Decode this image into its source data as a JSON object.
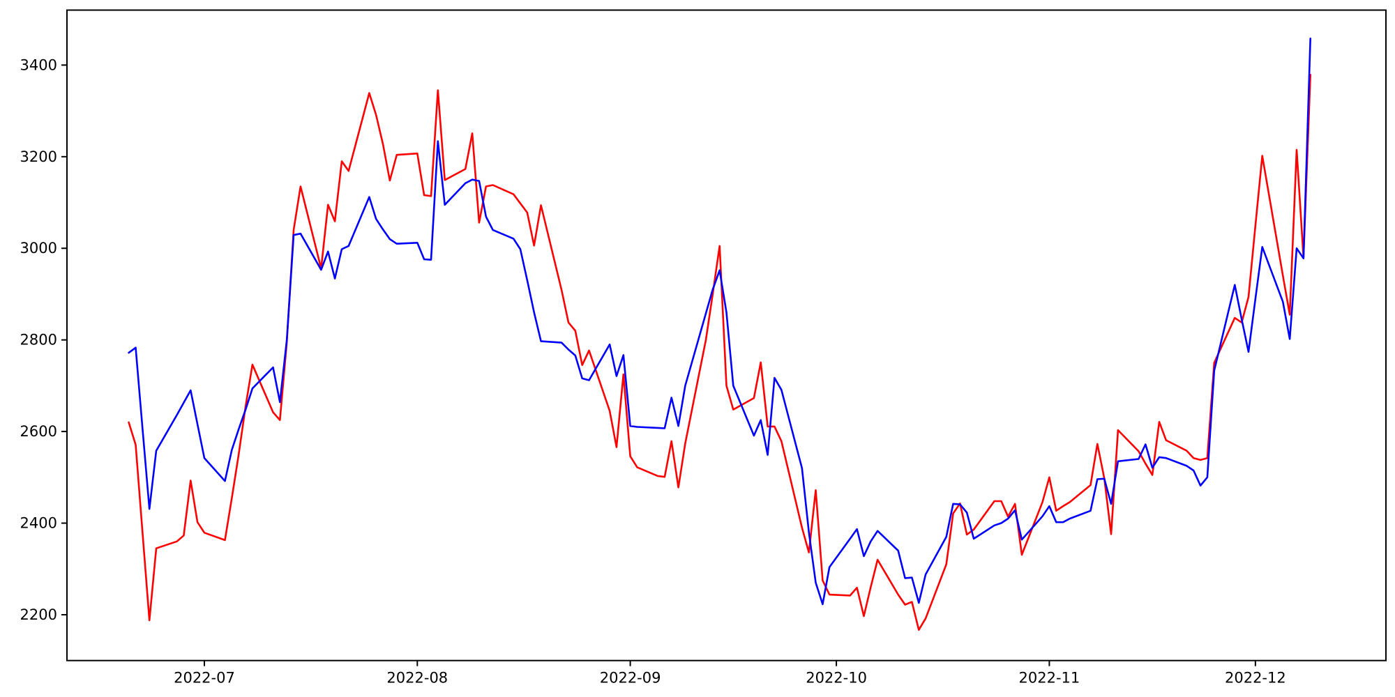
{
  "chart_data": {
    "type": "line",
    "title": "",
    "xlabel": "",
    "ylabel": "",
    "grid": false,
    "legend": null,
    "background_color": "#ffffff",
    "spine_color": "#000000",
    "xlim_dates": [
      "2022-06-11",
      "2022-12-20"
    ],
    "ylim": [
      2100,
      3520
    ],
    "yticks": [
      2200,
      2400,
      2600,
      2800,
      3000,
      3200,
      3400
    ],
    "xticks": [
      {
        "date": "2022-07-01",
        "label": "2022-07"
      },
      {
        "date": "2022-08-01",
        "label": "2022-08"
      },
      {
        "date": "2022-09-01",
        "label": "2022-09"
      },
      {
        "date": "2022-10-01",
        "label": "2022-10"
      },
      {
        "date": "2022-11-01",
        "label": "2022-11"
      },
      {
        "date": "2022-12-01",
        "label": "2022-12"
      }
    ],
    "x_dates": [
      "2022-06-20",
      "2022-06-21",
      "2022-06-22",
      "2022-06-23",
      "2022-06-24",
      "2022-06-27",
      "2022-06-28",
      "2022-06-29",
      "2022-06-30",
      "2022-07-01",
      "2022-07-04",
      "2022-07-05",
      "2022-07-06",
      "2022-07-07",
      "2022-07-08",
      "2022-07-11",
      "2022-07-12",
      "2022-07-13",
      "2022-07-14",
      "2022-07-15",
      "2022-07-18",
      "2022-07-19",
      "2022-07-20",
      "2022-07-21",
      "2022-07-22",
      "2022-07-25",
      "2022-07-26",
      "2022-07-27",
      "2022-07-28",
      "2022-07-29",
      "2022-08-01",
      "2022-08-02",
      "2022-08-03",
      "2022-08-04",
      "2022-08-05",
      "2022-08-08",
      "2022-08-09",
      "2022-08-10",
      "2022-08-11",
      "2022-08-12",
      "2022-08-15",
      "2022-08-16",
      "2022-08-17",
      "2022-08-18",
      "2022-08-19",
      "2022-08-22",
      "2022-08-23",
      "2022-08-24",
      "2022-08-25",
      "2022-08-26",
      "2022-08-29",
      "2022-08-30",
      "2022-08-31",
      "2022-09-01",
      "2022-09-02",
      "2022-09-05",
      "2022-09-06",
      "2022-09-07",
      "2022-09-08",
      "2022-09-09",
      "2022-09-12",
      "2022-09-13",
      "2022-09-14",
      "2022-09-15",
      "2022-09-16",
      "2022-09-19",
      "2022-09-20",
      "2022-09-21",
      "2022-09-22",
      "2022-09-23",
      "2022-09-26",
      "2022-09-27",
      "2022-09-28",
      "2022-09-29",
      "2022-09-30",
      "2022-10-03",
      "2022-10-04",
      "2022-10-05",
      "2022-10-06",
      "2022-10-07",
      "2022-10-10",
      "2022-10-11",
      "2022-10-12",
      "2022-10-13",
      "2022-10-14",
      "2022-10-17",
      "2022-10-18",
      "2022-10-19",
      "2022-10-20",
      "2022-10-21",
      "2022-10-24",
      "2022-10-25",
      "2022-10-26",
      "2022-10-27",
      "2022-10-28",
      "2022-10-31",
      "2022-11-01",
      "2022-11-02",
      "2022-11-03",
      "2022-11-04",
      "2022-11-07",
      "2022-11-08",
      "2022-11-09",
      "2022-11-10",
      "2022-11-11",
      "2022-11-14",
      "2022-11-15",
      "2022-11-16",
      "2022-11-17",
      "2022-11-18",
      "2022-11-21",
      "2022-11-22",
      "2022-11-23",
      "2022-11-24",
      "2022-11-25",
      "2022-11-28",
      "2022-11-29",
      "2022-11-30",
      "2022-12-01",
      "2022-12-02",
      "2022-12-05",
      "2022-12-06",
      "2022-12-07",
      "2022-12-08",
      "2022-12-09"
    ],
    "series": [
      {
        "name": "red-series",
        "color": "#ff0000",
        "values": [
          2620,
          2571,
          2380,
          2188,
          2345,
          2360,
          2373,
          2493,
          2402,
          2379,
          2363,
          2455,
          2550,
          2655,
          2746,
          2642,
          2625,
          2795,
          3040,
          3135,
          2956,
          3095,
          3059,
          3190,
          3169,
          3339,
          3291,
          3227,
          3148,
          3204,
          3207,
          3116,
          3114,
          3345,
          3149,
          3173,
          3251,
          3056,
          3135,
          3138,
          3118,
          3098,
          3078,
          3006,
          3094,
          2909,
          2838,
          2820,
          2745,
          2777,
          2645,
          2566,
          2725,
          2546,
          2522,
          2503,
          2501,
          2579,
          2478,
          2574,
          2800,
          2900,
          3005,
          2700,
          2648,
          2673,
          2751,
          2611,
          2611,
          2579,
          2390,
          2336,
          2472,
          2275,
          2244,
          2242,
          2259,
          2197,
          2260,
          2320,
          2244,
          2222,
          2228,
          2167,
          2192,
          2310,
          2421,
          2443,
          2375,
          2386,
          2448,
          2448,
          2414,
          2442,
          2331,
          2446,
          2500,
          2427,
          2437,
          2446,
          2483,
          2573,
          2498,
          2376,
          2603,
          2557,
          2530,
          2505,
          2621,
          2581,
          2558,
          2542,
          2538,
          2542,
          2750,
          2848,
          2838,
          2894,
          3050,
          3202,
          2940,
          2855,
          3215,
          2980,
          3379
        ]
      },
      {
        "name": "blue-series",
        "color": "#0000ff",
        "values": [
          2772,
          2783,
          2607,
          2431,
          2558,
          2636,
          2663,
          2690,
          2616,
          2542,
          2492,
          2560,
          2605,
          2648,
          2694,
          2740,
          2664,
          2800,
          3029,
          3032,
          2953,
          2993,
          2934,
          2998,
          3005,
          3112,
          3064,
          3041,
          3020,
          3010,
          3012,
          2976,
          2975,
          3234,
          3095,
          3142,
          3150,
          3147,
          3069,
          3040,
          3021,
          2998,
          2930,
          2860,
          2797,
          2794,
          2779,
          2766,
          2716,
          2712,
          2790,
          2721,
          2767,
          2612,
          2610,
          2608,
          2607,
          2674,
          2612,
          2700,
          2858,
          2910,
          2952,
          2860,
          2700,
          2591,
          2625,
          2549,
          2717,
          2691,
          2520,
          2380,
          2270,
          2223,
          2304,
          2366,
          2387,
          2328,
          2360,
          2383,
          2340,
          2280,
          2281,
          2226,
          2288,
          2370,
          2442,
          2441,
          2423,
          2366,
          2395,
          2400,
          2410,
          2428,
          2364,
          2415,
          2437,
          2402,
          2402,
          2410,
          2427,
          2496,
          2497,
          2442,
          2535,
          2540,
          2572,
          2521,
          2544,
          2542,
          2525,
          2515,
          2482,
          2500,
          2733,
          2920,
          2845,
          2774,
          2890,
          3003,
          2883,
          2802,
          3000,
          2978,
          3458
        ]
      }
    ]
  }
}
